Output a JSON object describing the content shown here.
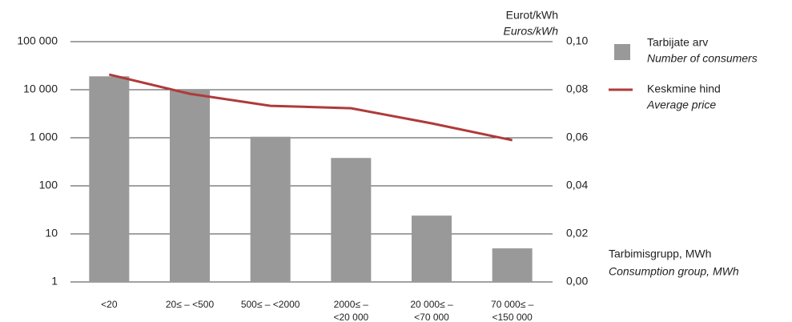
{
  "chart_data": {
    "type": "bar_line",
    "y2_label": [
      "Eurot/kWh",
      "Euros/kWh"
    ],
    "x_label": [
      "Tarbimisgrupp, MWh",
      "Consumption group, MWh"
    ],
    "categories": [
      [
        "<20"
      ],
      [
        "20≤ – <500"
      ],
      [
        "500≤ – <2000"
      ],
      [
        "2000≤ –",
        "<20 000"
      ],
      [
        "20 000≤ –",
        "<70 000"
      ],
      [
        "70 000≤ –",
        "<150 000"
      ]
    ],
    "series": [
      {
        "name": "Tarbijate arv",
        "name_translation": "Number of consumers",
        "type": "bar",
        "color": "#999999",
        "values": [
          19000,
          10000,
          1050,
          380,
          24,
          5
        ]
      },
      {
        "name": "Keskmine hind",
        "name_translation": "Average price",
        "type": "line",
        "axis": "y2",
        "color": "#b03a3a",
        "values": [
          0.0863,
          0.0783,
          0.0733,
          0.0723,
          0.066,
          0.059
        ]
      }
    ],
    "ylim": [
      1,
      100000
    ],
    "log_y": true,
    "yticks": [
      {
        "value": 1,
        "label": "1"
      },
      {
        "value": 10,
        "label": "10"
      },
      {
        "value": 100,
        "label": "100"
      },
      {
        "value": 1000,
        "label": "1 000"
      },
      {
        "value": 10000,
        "label": "10 000"
      },
      {
        "value": 100000,
        "label": "100 000"
      }
    ],
    "y2lim": [
      0,
      0.1
    ],
    "y2ticks": [
      {
        "value": 0,
        "label": "0,00"
      },
      {
        "value": 0.02,
        "label": "0,02"
      },
      {
        "value": 0.04,
        "label": "0,04"
      },
      {
        "value": 0.06,
        "label": "0,06"
      },
      {
        "value": 0.08,
        "label": "0,08"
      },
      {
        "value": 0.1,
        "label": "0,10"
      }
    ],
    "grid": true,
    "legend": "right"
  }
}
